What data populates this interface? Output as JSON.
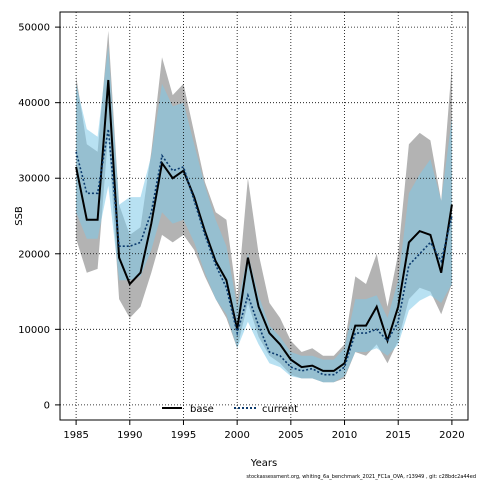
{
  "chart_data": {
    "type": "area",
    "xlabel": "Years",
    "ylabel": "SSB",
    "xlim": [
      1983.5,
      2021.5
    ],
    "ylim": [
      -2000,
      52000
    ],
    "xticks": [
      1985,
      1990,
      1995,
      2000,
      2005,
      2010,
      2015,
      2020
    ],
    "yticks": [
      0,
      10000,
      20000,
      30000,
      40000,
      50000
    ],
    "grid": true,
    "legend_position": "bottom-center",
    "x": [
      1985,
      1986,
      1987,
      1988,
      1989,
      1990,
      1991,
      1992,
      1993,
      1994,
      1995,
      1996,
      1997,
      1998,
      1999,
      2000,
      2001,
      2002,
      2003,
      2004,
      2005,
      2006,
      2007,
      2008,
      2009,
      2010,
      2011,
      2012,
      2013,
      2014,
      2015,
      2016,
      2017,
      2018,
      2019,
      2020
    ],
    "series": [
      {
        "name": "base",
        "color": "#000000",
        "band_color": "#808080",
        "values": [
          31500,
          24500,
          24500,
          43000,
          19500,
          16000,
          17500,
          24000,
          32000,
          30000,
          31000,
          27500,
          23000,
          19000,
          16500,
          10000,
          19500,
          13000,
          9500,
          8000,
          6000,
          5000,
          5200,
          4500,
          4500,
          5500,
          10500,
          10500,
          13000,
          8500,
          13000,
          21500,
          23000,
          22500,
          17500,
          26500
        ],
        "lower": [
          22000,
          17500,
          18000,
          36000,
          14000,
          11500,
          13000,
          17500,
          22500,
          21500,
          22500,
          20500,
          17000,
          14000,
          11500,
          7500,
          13500,
          9000,
          6500,
          5500,
          4000,
          3500,
          3500,
          3000,
          3000,
          3500,
          7000,
          6500,
          8000,
          5500,
          8500,
          14000,
          15500,
          15000,
          12000,
          16000
        ],
        "upper": [
          43500,
          34500,
          33500,
          49500,
          26500,
          22500,
          23500,
          33500,
          46000,
          41000,
          42500,
          36000,
          29500,
          25500,
          24500,
          14000,
          30000,
          20000,
          13500,
          11500,
          8500,
          7000,
          7500,
          6500,
          6500,
          8000,
          17000,
          16000,
          20000,
          13000,
          20000,
          34500,
          36000,
          35000,
          27000,
          45000
        ]
      },
      {
        "name": "current",
        "color": "#0a3a6e",
        "band_color": "#7ec8e8",
        "values": [
          33500,
          28000,
          28000,
          36500,
          21000,
          21000,
          21500,
          25500,
          33000,
          31000,
          31500,
          27000,
          22500,
          18500,
          15500,
          9500,
          14500,
          10500,
          7000,
          6500,
          5000,
          4500,
          4800,
          4000,
          4000,
          5000,
          9500,
          9500,
          10000,
          8500,
          11000,
          18500,
          20000,
          21500,
          19000,
          25000
        ],
        "lower": [
          25500,
          22000,
          22000,
          29000,
          16500,
          16500,
          17000,
          20500,
          25500,
          24000,
          24500,
          21500,
          17500,
          14000,
          12000,
          7500,
          11000,
          8000,
          5500,
          5000,
          3800,
          3500,
          3500,
          3000,
          3000,
          3800,
          7000,
          7000,
          7500,
          6500,
          8000,
          12500,
          13800,
          14500,
          13500,
          16000
        ],
        "upper": [
          42500,
          36500,
          35500,
          47500,
          26500,
          27500,
          27500,
          33000,
          42500,
          39500,
          40000,
          34500,
          29000,
          24500,
          21000,
          13000,
          20000,
          14500,
          10500,
          9000,
          7000,
          6500,
          6500,
          6000,
          6000,
          7500,
          14000,
          14000,
          14500,
          11500,
          16500,
          28000,
          30500,
          32500,
          27000,
          38000
        ]
      }
    ]
  },
  "footnote": "stockassessment.org,  whiting_6a_benchmark_2021_FC1a_OVA,  r13949 ,  git:  c28bdc2a44ed"
}
